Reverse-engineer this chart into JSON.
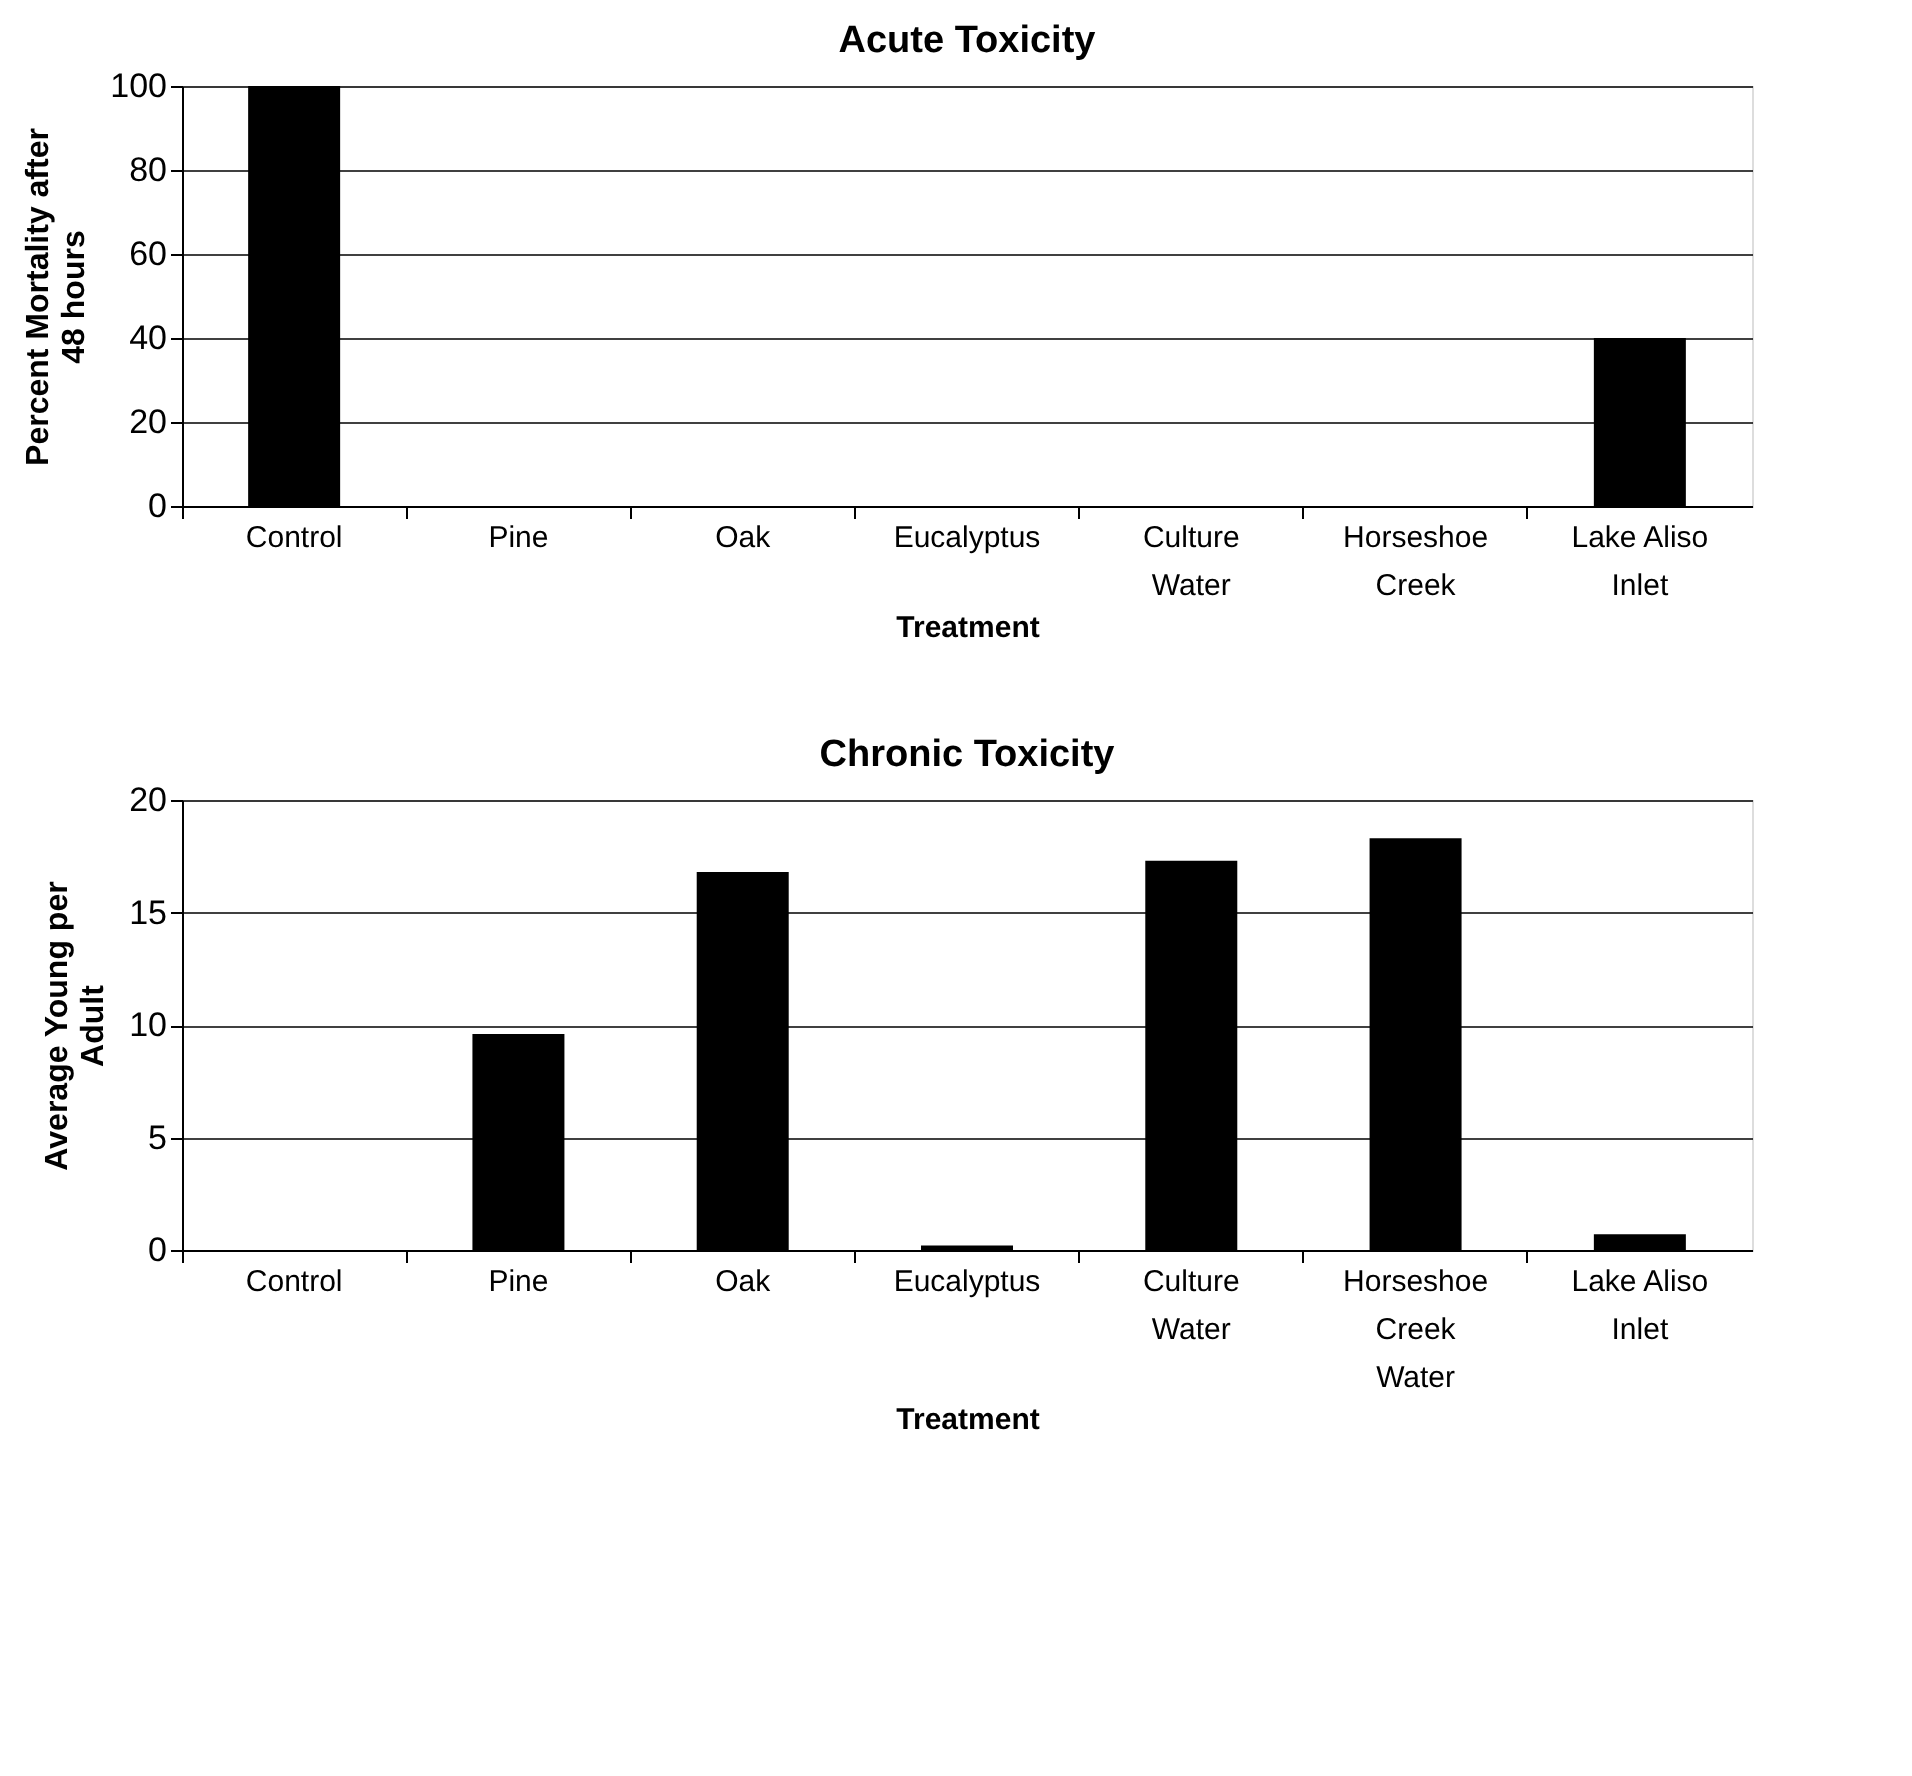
{
  "chart_data": [
    {
      "type": "bar",
      "title": "Acute Toxicity",
      "xlabel": "Treatment",
      "ylabel": "Percent Mortality after 48 hours",
      "categories": [
        "Control",
        "Pine",
        "Oak",
        "Eucalyptus",
        "Culture Water",
        "Horseshoe Creek",
        "Lake Aliso Inlet"
      ],
      "values": [
        100,
        0,
        0,
        0,
        0,
        0,
        40
      ],
      "color": "#000000",
      "ylim": [
        0,
        100
      ],
      "yticks": [
        0,
        20,
        40,
        60,
        80,
        100
      ],
      "grid": "y"
    },
    {
      "type": "bar",
      "title": "Chronic Toxicity",
      "xlabel": "Treatment",
      "ylabel": "Average Young per Adult",
      "categories": [
        "Control",
        "Pine",
        "Oak",
        "Eucalyptus",
        "Culture Water",
        "Horseshoe Creek Water",
        "Lake Aliso Inlet"
      ],
      "values": [
        0,
        9.6,
        16.8,
        0.2,
        17.3,
        18.3,
        0.7
      ],
      "color": "#000000",
      "ylim": [
        0,
        20
      ],
      "yticks": [
        0,
        5,
        10,
        15,
        20
      ],
      "grid": "y"
    }
  ]
}
